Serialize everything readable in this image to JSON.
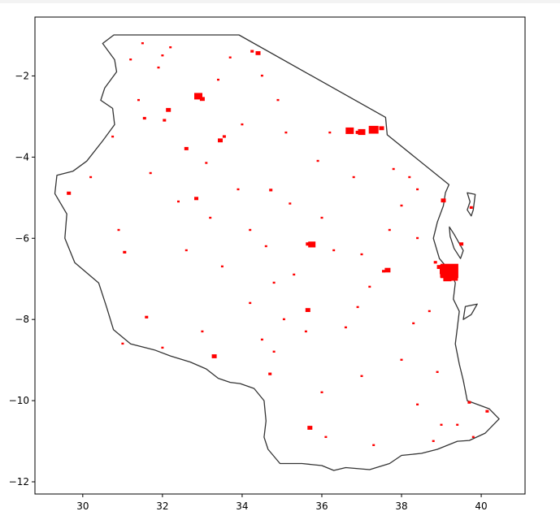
{
  "chart_data": {
    "type": "scatter",
    "title": "",
    "xlabel": "",
    "ylabel": "",
    "xlim": [
      28.8,
      41.1
    ],
    "ylim": [
      -12.3,
      -0.55
    ],
    "grid": false,
    "legend": "none",
    "colors": {
      "boundary": "#333333",
      "points": "#ff0000",
      "axes": "#000000"
    },
    "x_ticks": [
      30,
      32,
      34,
      36,
      38,
      40
    ],
    "y_ticks": [
      -2,
      -4,
      -6,
      -8,
      -10,
      -12
    ],
    "x_tick_labels": [
      "30",
      "32",
      "34",
      "36",
      "38",
      "40"
    ],
    "y_tick_labels": [
      "−2",
      "−4",
      "−6",
      "−8",
      "−10",
      "−12"
    ],
    "boundary_mainland": [
      [
        30.78,
        -0.99
      ],
      [
        33.92,
        -0.99
      ],
      [
        37.6,
        -3.02
      ],
      [
        37.64,
        -3.45
      ],
      [
        39.19,
        -4.68
      ],
      [
        39.1,
        -4.88
      ],
      [
        39.05,
        -5.2
      ],
      [
        38.9,
        -5.6
      ],
      [
        38.8,
        -6.0
      ],
      [
        38.95,
        -6.5
      ],
      [
        39.25,
        -6.85
      ],
      [
        39.35,
        -7.1
      ],
      [
        39.3,
        -7.5
      ],
      [
        39.45,
        -7.8
      ],
      [
        39.4,
        -8.2
      ],
      [
        39.35,
        -8.6
      ],
      [
        39.45,
        -9.1
      ],
      [
        39.55,
        -9.5
      ],
      [
        39.65,
        -10.0
      ],
      [
        40.2,
        -10.2
      ],
      [
        40.45,
        -10.45
      ],
      [
        40.1,
        -10.8
      ],
      [
        39.7,
        -10.98
      ],
      [
        39.4,
        -11.0
      ],
      [
        38.9,
        -11.2
      ],
      [
        38.5,
        -11.3
      ],
      [
        38.0,
        -11.35
      ],
      [
        37.7,
        -11.55
      ],
      [
        37.2,
        -11.7
      ],
      [
        36.6,
        -11.65
      ],
      [
        36.3,
        -11.72
      ],
      [
        36.0,
        -11.6
      ],
      [
        35.5,
        -11.55
      ],
      [
        34.95,
        -11.55
      ],
      [
        34.65,
        -11.2
      ],
      [
        34.55,
        -10.9
      ],
      [
        34.6,
        -10.5
      ],
      [
        34.55,
        -10.0
      ],
      [
        34.3,
        -9.7
      ],
      [
        33.95,
        -9.58
      ],
      [
        33.7,
        -9.55
      ],
      [
        33.4,
        -9.45
      ],
      [
        33.1,
        -9.22
      ],
      [
        32.7,
        -9.05
      ],
      [
        32.2,
        -8.9
      ],
      [
        31.8,
        -8.75
      ],
      [
        31.2,
        -8.6
      ],
      [
        30.77,
        -8.25
      ],
      [
        30.6,
        -7.7
      ],
      [
        30.4,
        -7.1
      ],
      [
        29.8,
        -6.6
      ],
      [
        29.55,
        -6.0
      ],
      [
        29.6,
        -5.4
      ],
      [
        29.3,
        -4.9
      ],
      [
        29.35,
        -4.45
      ],
      [
        29.75,
        -4.35
      ],
      [
        30.1,
        -4.1
      ],
      [
        30.5,
        -3.6
      ],
      [
        30.8,
        -3.2
      ],
      [
        30.75,
        -2.8
      ],
      [
        30.45,
        -2.6
      ],
      [
        30.55,
        -2.3
      ],
      [
        30.85,
        -1.9
      ],
      [
        30.8,
        -1.6
      ],
      [
        30.5,
        -1.2
      ],
      [
        30.78,
        -0.99
      ]
    ],
    "boundary_islands": [
      [
        [
          39.65,
          -4.88
        ],
        [
          39.85,
          -4.92
        ],
        [
          39.8,
          -5.3
        ],
        [
          39.75,
          -5.45
        ],
        [
          39.65,
          -5.3
        ],
        [
          39.72,
          -5.1
        ],
        [
          39.65,
          -4.88
        ]
      ],
      [
        [
          39.2,
          -5.72
        ],
        [
          39.32,
          -5.9
        ],
        [
          39.55,
          -6.3
        ],
        [
          39.48,
          -6.5
        ],
        [
          39.32,
          -6.25
        ],
        [
          39.22,
          -5.95
        ],
        [
          39.2,
          -5.72
        ]
      ],
      [
        [
          39.6,
          -7.68
        ],
        [
          39.9,
          -7.62
        ],
        [
          39.75,
          -7.88
        ],
        [
          39.55,
          -8.0
        ],
        [
          39.6,
          -7.68
        ]
      ]
    ],
    "points": [
      [
        39.2,
        -6.85,
        22
      ],
      [
        39.25,
        -6.95,
        16
      ],
      [
        39.1,
        -6.8,
        14
      ],
      [
        39.3,
        -6.75,
        10
      ],
      [
        39.15,
        -7.0,
        10
      ],
      [
        39.28,
        -6.9,
        10
      ],
      [
        39.05,
        -6.92,
        8
      ],
      [
        38.95,
        -6.72,
        6
      ],
      [
        38.85,
        -6.6,
        4
      ],
      [
        37.3,
        -3.35,
        12
      ],
      [
        37.0,
        -3.4,
        9
      ],
      [
        36.7,
        -3.37,
        10
      ],
      [
        37.5,
        -3.3,
        6
      ],
      [
        36.9,
        -3.4,
        5
      ],
      [
        32.9,
        -2.52,
        10
      ],
      [
        33.0,
        -2.58,
        6
      ],
      [
        35.75,
        -6.17,
        9
      ],
      [
        35.65,
        -6.15,
        5
      ],
      [
        34.4,
        -1.45,
        6
      ],
      [
        34.25,
        -1.4,
        4
      ],
      [
        39.05,
        -5.08,
        6
      ],
      [
        37.65,
        -6.8,
        7
      ],
      [
        37.55,
        -6.82,
        4
      ],
      [
        36.7,
        -3.35,
        4
      ],
      [
        35.65,
        -7.78,
        6
      ],
      [
        35.7,
        -10.68,
        6
      ],
      [
        33.45,
        -3.6,
        6
      ],
      [
        33.55,
        -3.5,
        4
      ],
      [
        32.6,
        -3.8,
        5
      ],
      [
        32.85,
        -5.03,
        5
      ],
      [
        32.15,
        -2.85,
        6
      ],
      [
        33.3,
        -8.92,
        6
      ],
      [
        32.05,
        -3.1,
        4
      ],
      [
        29.65,
        -4.9,
        5
      ],
      [
        31.55,
        -3.05,
        4
      ],
      [
        31.05,
        -6.35,
        4
      ],
      [
        31.6,
        -7.95,
        4
      ],
      [
        34.72,
        -4.82,
        4
      ],
      [
        34.7,
        -9.35,
        4
      ],
      [
        34.8,
        -8.8,
        3
      ],
      [
        35.05,
        -8.0,
        3
      ],
      [
        36.3,
        -6.3,
        3
      ],
      [
        34.6,
        -6.2,
        3
      ],
      [
        37.2,
        -7.2,
        3
      ],
      [
        38.3,
        -8.1,
        3
      ],
      [
        38.9,
        -9.3,
        3
      ],
      [
        38.4,
        -10.1,
        3
      ],
      [
        39.0,
        -10.6,
        3
      ],
      [
        39.7,
        -10.05,
        4
      ],
      [
        40.15,
        -10.27,
        4
      ],
      [
        33.1,
        -4.15,
        3
      ],
      [
        32.4,
        -5.1,
        3
      ],
      [
        35.2,
        -5.15,
        3
      ],
      [
        36.0,
        -5.5,
        3
      ],
      [
        38.4,
        -4.8,
        3
      ],
      [
        38.0,
        -5.2,
        3
      ],
      [
        37.7,
        -5.8,
        3
      ],
      [
        34.2,
        -7.6,
        3
      ],
      [
        33.5,
        -6.7,
        3
      ],
      [
        36.6,
        -8.2,
        3
      ],
      [
        37.0,
        -9.4,
        3
      ],
      [
        36.1,
        -10.9,
        3
      ],
      [
        37.3,
        -11.1,
        3
      ],
      [
        34.0,
        -3.2,
        3
      ],
      [
        35.1,
        -3.4,
        3
      ],
      [
        36.2,
        -3.4,
        3
      ],
      [
        35.9,
        -4.1,
        3
      ],
      [
        34.9,
        -2.6,
        3
      ],
      [
        33.7,
        -1.55,
        3
      ],
      [
        32.2,
        -1.3,
        3
      ],
      [
        31.9,
        -1.8,
        3
      ],
      [
        31.4,
        -2.6,
        3
      ],
      [
        30.75,
        -3.5,
        3
      ],
      [
        30.9,
        -5.8,
        3
      ],
      [
        31.7,
        -4.4,
        3
      ],
      [
        30.2,
        -4.5,
        3
      ],
      [
        32.0,
        -8.7,
        3
      ],
      [
        31.0,
        -8.6,
        3
      ],
      [
        33.0,
        -8.3,
        3
      ],
      [
        34.5,
        -8.5,
        3
      ],
      [
        35.6,
        -8.3,
        3
      ],
      [
        36.9,
        -7.7,
        3
      ],
      [
        38.7,
        -7.8,
        3
      ],
      [
        38.4,
        -6.0,
        3
      ],
      [
        37.0,
        -6.4,
        3
      ],
      [
        35.3,
        -6.9,
        3
      ],
      [
        34.8,
        -7.1,
        3
      ],
      [
        36.0,
        -9.8,
        3
      ],
      [
        38.0,
        -9.0,
        3
      ],
      [
        38.8,
        -11.0,
        3
      ],
      [
        39.4,
        -10.6,
        3
      ],
      [
        39.8,
        -10.9,
        3
      ],
      [
        37.8,
        -4.3,
        3
      ],
      [
        38.2,
        -4.5,
        3
      ],
      [
        36.8,
        -4.5,
        3
      ],
      [
        34.2,
        -5.8,
        3
      ],
      [
        33.9,
        -4.8,
        3
      ],
      [
        33.2,
        -5.5,
        3
      ],
      [
        32.6,
        -6.3,
        3
      ],
      [
        31.2,
        -1.6,
        3
      ],
      [
        31.5,
        -1.2,
        3
      ],
      [
        32.0,
        -1.5,
        3
      ],
      [
        34.5,
        -2.0,
        3
      ],
      [
        33.4,
        -2.1,
        3
      ],
      [
        39.5,
        -6.15,
        5
      ],
      [
        39.75,
        -5.25,
        4
      ]
    ]
  }
}
